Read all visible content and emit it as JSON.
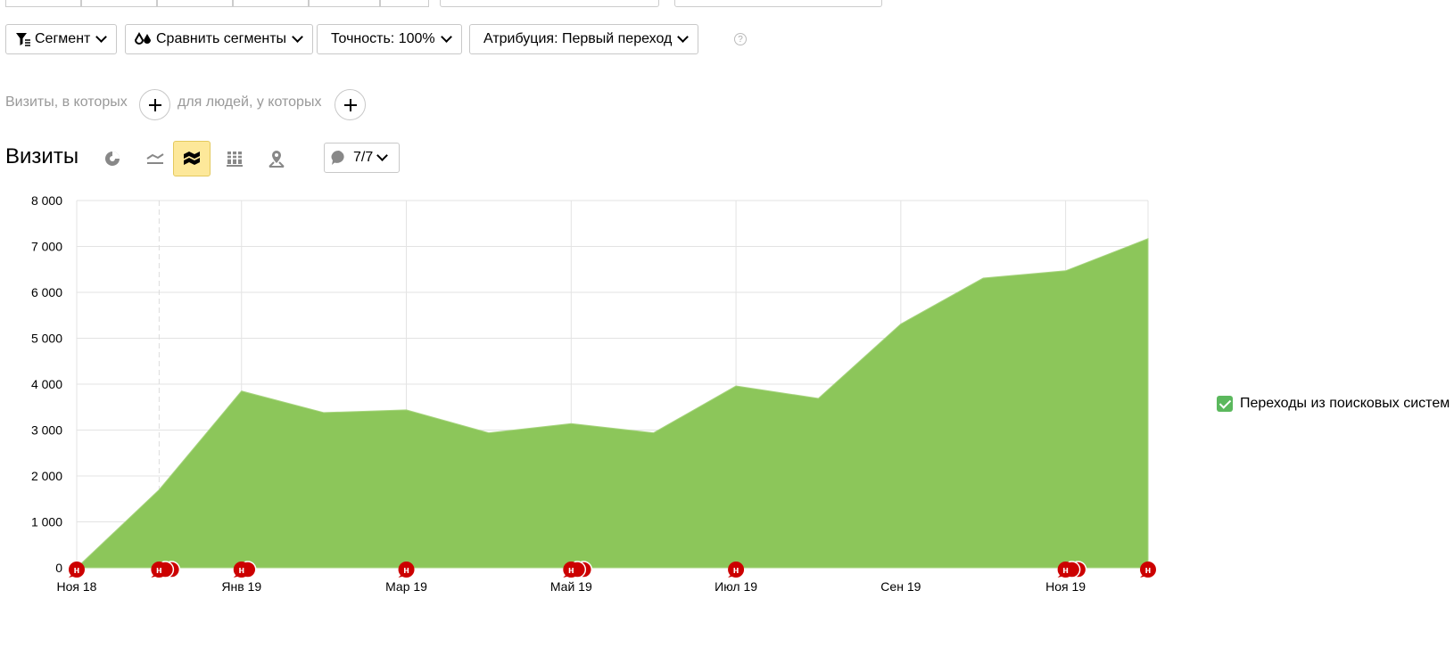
{
  "toolbar": {
    "segment_label": "Сегмент",
    "compare_label": "Сравнить сегменты",
    "accuracy_label": "Точность: 100%",
    "attribution_label": "Атрибуция: Первый переход",
    "help": "?"
  },
  "filters": {
    "visits_label": "Визиты, в которых",
    "people_label": "для людей, у которых"
  },
  "view": {
    "title": "Визиты",
    "annotations_count": "7/7"
  },
  "colors": {
    "area": "#8cc65a",
    "marker": "#cc0000",
    "legend_check": "#5bb85d",
    "active_view": "#fde89a"
  },
  "legend": {
    "label": "Переходы из поисковых систем"
  },
  "chart_data": {
    "type": "area",
    "x": [
      "2018-11",
      "2018-12",
      "2019-01",
      "2019-02",
      "2019-03",
      "2019-04",
      "2019-05",
      "2019-06",
      "2019-07",
      "2019-08",
      "2019-09",
      "2019-10",
      "2019-11",
      "2019-12"
    ],
    "series": [
      {
        "name": "Переходы из поисковых систем",
        "values": [
          0,
          1700,
          3850,
          3380,
          3440,
          2940,
          3140,
          2940,
          3960,
          3690,
          5310,
          6310,
          6470,
          7170
        ]
      }
    ],
    "ylim": [
      0,
      8000
    ],
    "yticks": [
      "0",
      "1 000",
      "2 000",
      "3 000",
      "4 000",
      "5 000",
      "6 000",
      "7 000",
      "8 000"
    ],
    "xticks": [
      {
        "index": 0,
        "label": "Ноя 18"
      },
      {
        "index": 2,
        "label": "Янв 19"
      },
      {
        "index": 4,
        "label": "Мар 19"
      },
      {
        "index": 6,
        "label": "Май 19"
      },
      {
        "index": 8,
        "label": "Июл 19"
      },
      {
        "index": 10,
        "label": "Сен 19"
      },
      {
        "index": 12,
        "label": "Ноя 19"
      }
    ],
    "annotations": [
      {
        "index": 0,
        "count": 1,
        "letter": "н"
      },
      {
        "index": 1,
        "count": 3,
        "letter": "н"
      },
      {
        "index": 2,
        "count": 2,
        "letter": "н"
      },
      {
        "index": 4,
        "count": 1,
        "letter": "н"
      },
      {
        "index": 6,
        "count": 3,
        "letter": "н"
      },
      {
        "index": 8,
        "count": 1,
        "letter": "н"
      },
      {
        "index": 12,
        "count": 3,
        "letter": "н"
      },
      {
        "index": 13,
        "count": 1,
        "letter": "н"
      }
    ],
    "grid": true,
    "legend_position": "right"
  }
}
